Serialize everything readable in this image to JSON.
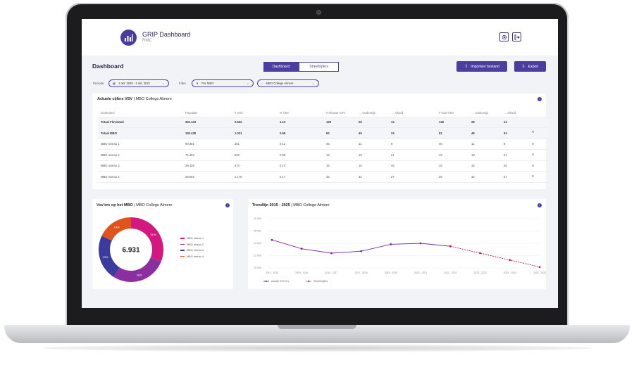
{
  "app": {
    "title": "GRIP Dashboard",
    "subtitle": "RMC"
  },
  "header": {
    "settings_icon": "gear-icon",
    "logout_icon": "logout-icon"
  },
  "page": {
    "title": "Dashboard"
  },
  "tabs": [
    {
      "label": "Dashboard",
      "active": true
    },
    {
      "label": "Streefcijfers",
      "active": false
    }
  ],
  "actions": {
    "import_label": "Importeer bestand",
    "export_label": "Export"
  },
  "filters": {
    "period_label": "Periode",
    "period_value": "1 okt. 2020 - 1 okt. 2021",
    "filter_label": "Filter",
    "filter_value": "Per MBO",
    "school_value": "MBO College Almere"
  },
  "table_card": {
    "title_bold": "Actuele cijfers VSV",
    "title_rest": "| MBO College Almere",
    "columns": [
      "Onderdeel",
      "Populatie",
      "# VSV",
      "% VSV",
      "# Nieuwe VSV",
      "→ Onderwijs",
      "→ Arbeid",
      "# Oud-VSV",
      "→ Onderwijs",
      "→ Arbeid"
    ],
    "rows": [
      {
        "cells": [
          "Totaal Flevoland",
          "391.103",
          "2.532",
          "1.15",
          "128",
          "28",
          "13",
          "128",
          "28",
          "13"
        ],
        "bold": true,
        "shade": true,
        "icon": ""
      },
      {
        "cells": [
          "Totaal MBO",
          "192.428",
          "1.031",
          "0.58",
          "82",
          "49",
          "33",
          "82",
          "49",
          "33"
        ],
        "bold": true,
        "shade": true,
        "icon": "^"
      },
      {
        "cells": [
          "MBO niveau 1",
          "90.381",
          "301",
          "0.12",
          "46",
          "11",
          "9",
          "46",
          "11",
          "9"
        ],
        "bold": false,
        "shade": false,
        "icon": "≡"
      },
      {
        "cells": [
          "MBO niveau 2",
          "74.482",
          "592",
          "0.09",
          "19",
          "19",
          "21",
          "19",
          "19",
          "21"
        ],
        "bold": false,
        "shade": false,
        "icon": "≡"
      },
      {
        "cells": [
          "MBO niveau 3",
          "39.428",
          "672",
          "0.10",
          "15",
          "15",
          "46",
          "15",
          "15",
          "46"
        ],
        "bold": false,
        "shade": false,
        "icon": "≡"
      },
      {
        "cells": [
          "MBO niveau 4",
          "39.692",
          "1.178",
          "0.17",
          "35",
          "32",
          "27",
          "35",
          "32",
          "27"
        ],
        "bold": false,
        "shade": false,
        "icon": "≡"
      }
    ]
  },
  "donut_card": {
    "title_bold": "Vsv'ers op het MBO",
    "title_rest": "| MBO College Almere",
    "total": "6.931",
    "slices": [
      {
        "label": "MBO niveau 1",
        "value": 31,
        "color": "#d3197f"
      },
      {
        "label": "MBO niveau 2",
        "value": 28,
        "color": "#8a2ea0"
      },
      {
        "label": "MBO niveau 3",
        "value": 23,
        "color": "#3b3a9e"
      },
      {
        "label": "MBO niveau 4",
        "value": 18,
        "color": "#e0531c"
      }
    ],
    "slice_labels": [
      "31%",
      "28%",
      "23%",
      "18%"
    ]
  },
  "chart_data": {
    "type": "line",
    "title": "Trendlijn 2015 - 2025",
    "subtitle": "| MBO College Almere",
    "categories": [
      "2014 - 2015",
      "2015 - 2016",
      "2016 - 2017",
      "2017 - 2018",
      "2018 - 2019",
      "2020 - 2021",
      "2021 - 2022",
      "2022 - 2023",
      "2023 - 2024",
      "2024 - 2025"
    ],
    "y_ticks": [
      "30.000",
      "28.000",
      "24.000",
      "22.000",
      "20.000"
    ],
    "ylim": [
      20000,
      30000
    ],
    "series": [
      {
        "name": "Aantal VSV'ers",
        "color": "#7b2d9e",
        "dashed": false,
        "values": [
          25700,
          23900,
          23000,
          23400,
          24800,
          25000,
          24400,
          null,
          null,
          null
        ]
      },
      {
        "name": "Streefcijfers",
        "color": "#c2185b",
        "dashed": true,
        "values": [
          null,
          null,
          null,
          null,
          null,
          null,
          24400,
          23000,
          21600,
          20200
        ]
      }
    ]
  }
}
